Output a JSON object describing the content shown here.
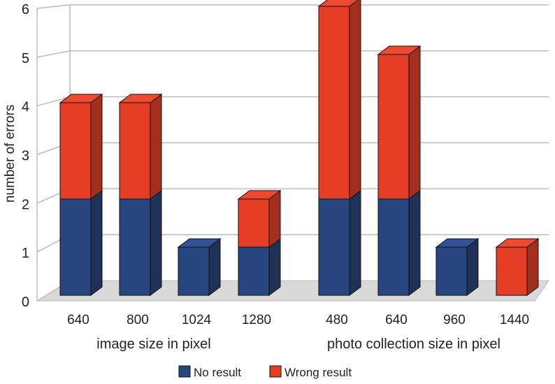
{
  "chart_data": {
    "type": "bar",
    "stacked": true,
    "style": "3d",
    "title": "",
    "ylabel": "number of errors",
    "ylim": [
      0,
      6
    ],
    "yticks": [
      "0",
      "1",
      "2",
      "3",
      "4",
      "5",
      "6"
    ],
    "groups": [
      {
        "label": "image size in pixel",
        "categories": [
          "640",
          "800",
          "1024",
          "1280"
        ]
      },
      {
        "label": "photo collection size in pixel",
        "categories": [
          "480",
          "640",
          "960",
          "1440"
        ]
      }
    ],
    "categories": [
      "640",
      "800",
      "1024",
      "1280",
      "480",
      "640",
      "960",
      "1440"
    ],
    "series": [
      {
        "name": "No result",
        "color": "#27467f",
        "values": [
          2,
          2,
          1,
          1,
          2,
          2,
          1,
          0
        ]
      },
      {
        "name": "Wrong result",
        "color": "#e53d25",
        "values": [
          2,
          2,
          0,
          1,
          4,
          3,
          0,
          1
        ]
      }
    ],
    "grid": true,
    "legend": "bottom"
  }
}
